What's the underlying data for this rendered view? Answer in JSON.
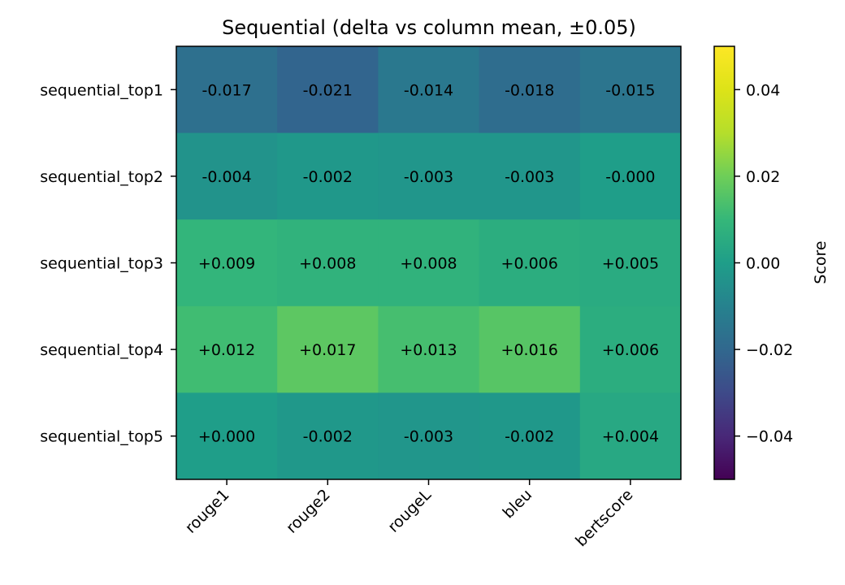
{
  "chart_data": {
    "type": "heatmap",
    "title": "Sequential (delta vs column mean, ±0.05)",
    "rows": [
      "sequential_top1",
      "sequential_top2",
      "sequential_top3",
      "sequential_top4",
      "sequential_top5"
    ],
    "columns": [
      "rouge1",
      "rouge2",
      "rougeL",
      "bleu",
      "bertscore"
    ],
    "values": [
      [
        -0.017,
        -0.021,
        -0.014,
        -0.018,
        -0.015
      ],
      [
        -0.004,
        -0.002,
        -0.003,
        -0.003,
        -0.0
      ],
      [
        0.009,
        0.008,
        0.008,
        0.006,
        0.005
      ],
      [
        0.012,
        0.017,
        0.013,
        0.016,
        0.006
      ],
      [
        0.0,
        -0.002,
        -0.003,
        -0.002,
        0.004
      ]
    ],
    "labels": [
      [
        "-0.017",
        "-0.021",
        "-0.014",
        "-0.018",
        "-0.015"
      ],
      [
        "-0.004",
        "-0.002",
        "-0.003",
        "-0.003",
        "-0.000"
      ],
      [
        "+0.009",
        "+0.008",
        "+0.008",
        "+0.006",
        "+0.005"
      ],
      [
        "+0.012",
        "+0.017",
        "+0.013",
        "+0.016",
        "+0.006"
      ],
      [
        "+0.000",
        "-0.002",
        "-0.003",
        "-0.002",
        "+0.004"
      ]
    ],
    "colorbar": {
      "label": "Score",
      "vmin": -0.05,
      "vmax": 0.05,
      "ticks": [
        0.04,
        0.02,
        0.0,
        -0.02,
        -0.04
      ],
      "tick_labels": [
        "0.04",
        "0.02",
        "0.00",
        "−0.02",
        "−0.04"
      ]
    },
    "colormap": "viridis"
  }
}
